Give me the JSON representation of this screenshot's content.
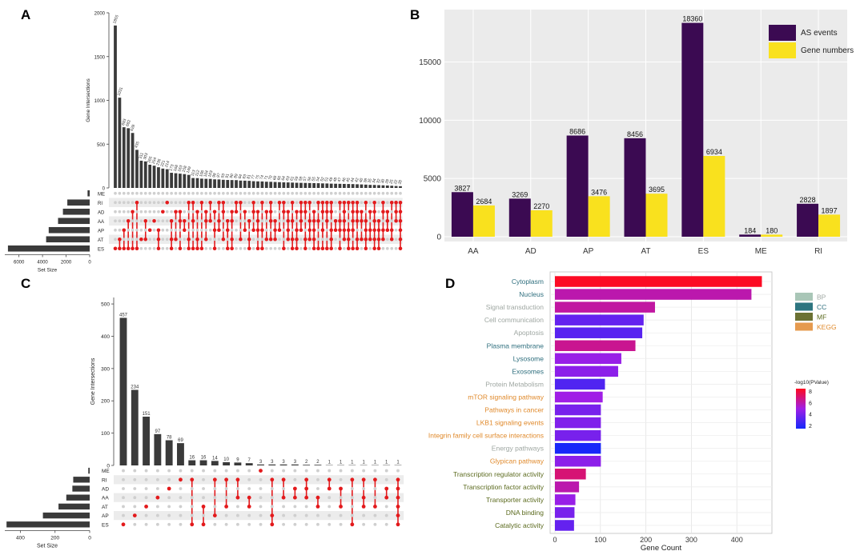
{
  "panels": {
    "A": "A",
    "B": "B",
    "C": "C",
    "D": "D"
  },
  "chart_data": [
    {
      "id": "A",
      "type": "upset",
      "ylabel": "Gene Intersections",
      "xlabel_sets": "Set Size",
      "ylim": [
        0,
        2000
      ],
      "yticks": [
        0,
        500,
        1000,
        1500,
        2000
      ],
      "set_size_ticks": [
        6000,
        4000,
        2000,
        0
      ],
      "sets": [
        "ME",
        "RI",
        "AD",
        "AA",
        "AP",
        "AT",
        "ES"
      ],
      "set_sizes": [
        180,
        1897,
        2270,
        2684,
        3476,
        3695,
        6934
      ],
      "intersection_values": [
        1855,
        1031,
        693,
        682,
        628,
        435,
        311,
        303,
        265,
        254,
        236,
        221,
        214,
        173,
        168,
        163,
        158,
        149,
        113,
        112,
        106,
        104,
        103,
        98,
        97,
        93,
        91,
        90,
        89,
        84,
        83,
        81,
        77,
        75,
        74,
        71,
        70,
        68,
        66,
        64,
        63,
        61,
        59,
        58,
        57,
        56,
        55,
        54,
        52,
        51,
        49,
        48,
        47,
        46,
        45,
        44,
        42,
        40,
        38,
        35,
        34,
        32,
        30,
        28,
        25,
        22,
        20
      ],
      "intersection_labels": [
        "1855",
        "1031",
        "693",
        "682",
        "628",
        "435",
        "311",
        "303",
        "265",
        "254",
        "236",
        "221",
        "214",
        "173",
        "168",
        "163",
        "158",
        "149",
        "113",
        "112",
        "106",
        "104",
        "103",
        "98",
        "97",
        "93",
        "91",
        "90",
        "89",
        "84",
        "83",
        "81",
        "77",
        "75",
        "74",
        "71",
        "70",
        "68",
        "66",
        "64",
        "63",
        "61",
        "59",
        "58",
        "57",
        "56",
        "55",
        "54",
        "52",
        "51",
        "49",
        "48",
        "47",
        "46",
        "45",
        "44",
        "42",
        "40",
        "38",
        "35",
        "34",
        "32",
        "30",
        "28",
        "25",
        "22",
        "20"
      ],
      "intersection_sets": [
        [
          "ES"
        ],
        [
          "AT",
          "ES"
        ],
        [
          "AP",
          "ES"
        ],
        [
          "AA",
          "ES"
        ],
        [
          "AD",
          "ES"
        ],
        [
          "RI",
          "ES"
        ],
        [
          "AT"
        ],
        [
          "AA",
          "AT"
        ],
        [
          "AP"
        ],
        [
          "AA"
        ],
        [
          "AP",
          "AT",
          "ES"
        ],
        [
          "AD"
        ],
        [
          "RI"
        ],
        [
          "AA",
          "AT",
          "ES"
        ],
        [
          "AD",
          "AT"
        ],
        [
          "AD",
          "AA",
          "ES"
        ],
        [
          "AP",
          "AA"
        ],
        [
          "RI",
          "AT",
          "ES"
        ],
        [
          "RI",
          "AA",
          "ES"
        ],
        [
          "AD",
          "AT",
          "ES"
        ],
        [
          "RI",
          "ES"
        ],
        [
          "AD",
          "AA",
          "AT"
        ],
        [
          "RI",
          "AA"
        ],
        [
          "AD",
          "AP",
          "ES"
        ],
        [
          "RI",
          "AA",
          "AP"
        ],
        [
          "RI",
          "AD",
          "AT"
        ],
        [
          "AA",
          "AP",
          "ES"
        ],
        [
          "AD",
          "AA",
          "AT",
          "ES"
        ],
        [
          "RI",
          "AD"
        ],
        [
          "RI",
          "AT"
        ],
        [
          "AD",
          "AP"
        ],
        [
          "AA",
          "AT",
          "ES"
        ],
        [
          "RI",
          "AD",
          "AP"
        ],
        [
          "AD",
          "AA",
          "AP",
          "ES"
        ],
        [
          "RI",
          "AP",
          "ES"
        ],
        [
          "AD",
          "AT"
        ],
        [
          "RI",
          "AD",
          "AA",
          "AT"
        ],
        [
          "AA",
          "AP",
          "AT"
        ],
        [
          "RI",
          "AP"
        ],
        [
          "RI",
          "AD",
          "ES"
        ],
        [
          "AD",
          "AA",
          "AP",
          "AT"
        ],
        [
          "RI",
          "AA",
          "AT",
          "ES"
        ],
        [
          "AD",
          "AP",
          "AT",
          "ES"
        ],
        [
          "RI",
          "AD",
          "AA",
          "AP"
        ],
        [
          "RI",
          "AD",
          "AT",
          "ES"
        ],
        [
          "RI",
          "AA",
          "AP",
          "AT"
        ],
        [
          "AD",
          "AA",
          "AP",
          "AT",
          "ES"
        ],
        [
          "RI",
          "AA",
          "ES"
        ],
        [
          "RI",
          "AD",
          "AP",
          "ES"
        ],
        [
          "RI",
          "AD",
          "AA",
          "ES"
        ],
        [
          "RI",
          "AD",
          "AP",
          "AT",
          "ES"
        ],
        [
          "AA",
          "AP"
        ],
        [
          "RI",
          "AA",
          "AP",
          "ES"
        ],
        [
          "RI",
          "AD",
          "AA",
          "AP",
          "AT"
        ],
        [
          "RI",
          "AP",
          "AT",
          "ES"
        ],
        [
          "RI",
          "AD",
          "AA",
          "AP",
          "ES"
        ],
        [
          "RI",
          "AD",
          "AA",
          "AT",
          "ES"
        ],
        [
          "AD",
          "AA",
          "AT"
        ],
        [
          "RI",
          "AA",
          "AP",
          "AT",
          "ES"
        ],
        [
          "AD",
          "AP",
          "AT"
        ],
        [
          "RI",
          "AD",
          "AA",
          "AP",
          "AT",
          "ES"
        ],
        [
          "AA",
          "AP",
          "AT",
          "ES"
        ],
        [
          "RI",
          "AD",
          "AP",
          "AT"
        ],
        [
          "AD",
          "AA",
          "AP"
        ],
        [
          "RI",
          "AP",
          "AT"
        ],
        [
          "RI",
          "AD",
          "AA"
        ],
        [
          "RI",
          "AD",
          "AA",
          "AP",
          "AT",
          "ES"
        ]
      ]
    },
    {
      "id": "B",
      "type": "bar",
      "categories": [
        "AA",
        "AD",
        "AP",
        "AT",
        "ES",
        "ME",
        "RI"
      ],
      "series": [
        {
          "name": "AS events",
          "color": "#3b0a52",
          "values": [
            3827,
            3269,
            8686,
            8456,
            18360,
            184,
            2828
          ]
        },
        {
          "name": "Gene numbers",
          "color": "#f9e11e",
          "values": [
            2684,
            2270,
            3476,
            3695,
            6934,
            180,
            1897
          ]
        }
      ],
      "ylim": [
        0,
        19500
      ],
      "yticks": [
        0,
        5000,
        10000,
        15000
      ],
      "legend": "top-right",
      "title": "",
      "xlabel": "",
      "ylabel": ""
    },
    {
      "id": "C",
      "type": "upset",
      "ylabel": "Gene Intersections",
      "xlabel_sets": "Set Size",
      "ylim": [
        0,
        520
      ],
      "yticks": [
        0,
        100,
        200,
        300,
        400,
        500
      ],
      "set_size_ticks": [
        400,
        200,
        0
      ],
      "sets": [
        "ME",
        "RI",
        "AD",
        "AA",
        "AT",
        "AP",
        "ES"
      ],
      "set_sizes": [
        8,
        95,
        100,
        135,
        180,
        270,
        480
      ],
      "intersection_values": [
        457,
        234,
        151,
        97,
        78,
        69,
        16,
        16,
        14,
        10,
        9,
        7,
        3,
        3,
        3,
        3,
        2,
        2,
        1,
        1,
        1,
        1,
        1,
        1,
        1
      ],
      "intersection_labels": [
        "457",
        "234",
        "151",
        "97",
        "78",
        "69",
        "16",
        "16",
        "14",
        "10",
        "9",
        "7",
        "3",
        "3",
        "3",
        "3",
        "2",
        "2",
        "1",
        "1",
        "1",
        "1",
        "1",
        "1",
        "1"
      ],
      "intersection_sets": [
        [
          "ES"
        ],
        [
          "AP"
        ],
        [
          "AT"
        ],
        [
          "AA"
        ],
        [
          "AD"
        ],
        [
          "RI"
        ],
        [
          "RI",
          "ES"
        ],
        [
          "AT",
          "ES"
        ],
        [
          "RI",
          "AP"
        ],
        [
          "RI",
          "AT"
        ],
        [
          "RI",
          "AA"
        ],
        [
          "AA",
          "AT"
        ],
        [
          "ME"
        ],
        [
          "RI",
          "AP",
          "ES"
        ],
        [
          "RI",
          "AA"
        ],
        [
          "AD",
          "AA"
        ],
        [
          "RI",
          "AD",
          "AA"
        ],
        [
          "AA",
          "AT"
        ],
        [
          "RI",
          "AD"
        ],
        [
          "AD",
          "AT"
        ],
        [
          "RI",
          "ES"
        ],
        [
          "RI",
          "AA",
          "AT"
        ],
        [
          "RI",
          "AT"
        ],
        [
          "AD",
          "AA"
        ],
        [
          "RI",
          "AD",
          "AA",
          "AT",
          "AP",
          "ES"
        ]
      ]
    },
    {
      "id": "D",
      "type": "bar",
      "orientation": "horizontal",
      "xlabel": "Gene Count",
      "xlim": [
        0,
        470
      ],
      "xticks": [
        0,
        100,
        200,
        300,
        400
      ],
      "categories": [
        "Cytoplasm",
        "Nucleus",
        "Signal transduction",
        "Cell communication",
        "Apoptosis",
        "Plasma membrane",
        "Lysosome",
        "Exosomes",
        "Protein Metabolism",
        "mTOR signaling pathway",
        "Pathways in cancer",
        "LKB1 signaling events",
        "Integrin family cell surface interactions",
        "Energy pathways",
        "Glypican pathway",
        "Transcription regulator activity",
        "Transcription factor activity",
        "Transporter activity",
        "DNA binding",
        "Catalytic activity"
      ],
      "values": [
        455,
        432,
        220,
        195,
        192,
        177,
        146,
        139,
        110,
        105,
        101,
        101,
        101,
        101,
        101,
        68,
        53,
        45,
        43,
        42
      ],
      "category_group": [
        "CC",
        "CC",
        "BP",
        "BP",
        "BP",
        "CC",
        "CC",
        "CC",
        "BP",
        "KEGG",
        "KEGG",
        "KEGG",
        "KEGG",
        "BP",
        "KEGG",
        "MF",
        "MF",
        "MF",
        "MF",
        "MF"
      ],
      "pvalue_color": [
        8.4,
        6.0,
        6.2,
        3.5,
        3.2,
        6.5,
        4.8,
        4.5,
        3.0,
        5.0,
        4.0,
        4.2,
        4.0,
        1.6,
        4.5,
        7.0,
        6.0,
        4.8,
        4.0,
        3.5
      ],
      "legend_groups": [
        {
          "name": "BP",
          "color": "#a9c6b7"
        },
        {
          "name": "CC",
          "color": "#2d7580"
        },
        {
          "name": "MF",
          "color": "#6b7133"
        },
        {
          "name": "KEGG",
          "color": "#e59a4e"
        }
      ],
      "label_colors": {
        "BP": "#9fa7a2",
        "CC": "#2f6f7e",
        "MF": "#5b6a1e",
        "KEGG": "#e08a2c"
      },
      "colorbar_title": "-log10(PValue)",
      "colorbar_ticks": [
        8,
        6,
        4,
        2
      ],
      "colorbar_range": [
        1.5,
        8.5
      ]
    }
  ]
}
